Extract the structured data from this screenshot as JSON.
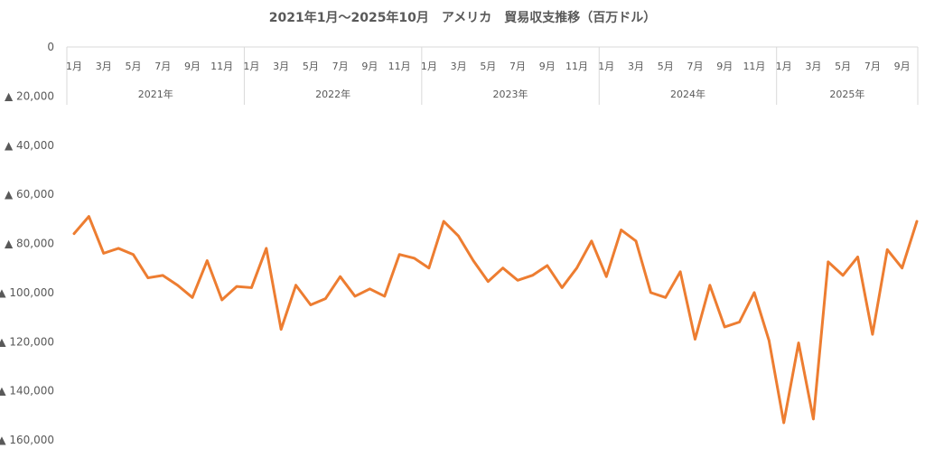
{
  "chart_data": {
    "type": "line",
    "title": "2021年1月～2025年10月　アメリカ　貿易収支推移（百万ドル）",
    "xlabel": "",
    "ylabel": "",
    "ylim": [
      -160000,
      0
    ],
    "y_ticks": [
      0,
      -20000,
      -40000,
      -60000,
      -80000,
      -100000,
      -120000,
      -140000,
      -160000
    ],
    "y_tick_labels": [
      "0",
      "▲ 20,000",
      "▲ 40,000",
      "▲ 60,000",
      "▲ 80,000",
      "▲ 100,000",
      "▲ 120,000",
      "▲ 140,000",
      "▲ 160,000"
    ],
    "years": [
      "2021年",
      "2022年",
      "2023年",
      "2024年",
      "2025年"
    ],
    "month_tick_labels": [
      "1月",
      "3月",
      "5月",
      "7月",
      "9月",
      "11月"
    ],
    "month_tick_labels_last": [
      "1月",
      "3月",
      "5月",
      "7月",
      "9月"
    ],
    "grid": false,
    "line_color": "#ED7D31",
    "series": [
      {
        "values": [
          -76000,
          -69000,
          -84000,
          -82000,
          -84500,
          -94000,
          -93000,
          -97000,
          -102000,
          -87000,
          -103000,
          -97500,
          -98000,
          -82000,
          -115000,
          -97000,
          -105000,
          -102500,
          -93500,
          -101500,
          -98500,
          -101500,
          -84500,
          -86000,
          -90000,
          -71000,
          -77000,
          -87000,
          -95500,
          -90000,
          -95000,
          -93000,
          -89000,
          -98000,
          -90000,
          -79000,
          -93500,
          -74500,
          -79000,
          -100000,
          -102000,
          -91500,
          -119000,
          -97000,
          -114000,
          -112000,
          -100000,
          -119500,
          -153000,
          -120500,
          -151500,
          -87500,
          -93000,
          -85500,
          -117000,
          -82500,
          -90000,
          -71000
        ]
      }
    ]
  }
}
